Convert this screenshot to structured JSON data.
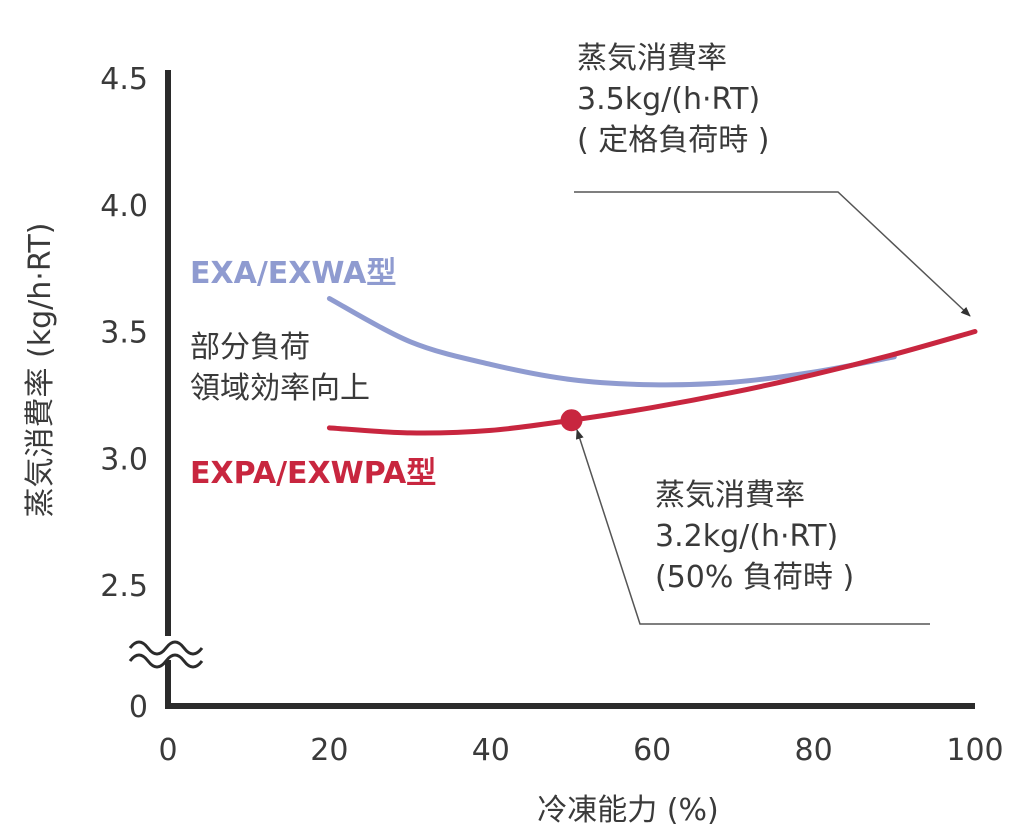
{
  "chart_data": {
    "type": "line",
    "xlabel": "冷凍能力 (%)",
    "ylabel": "蒸気消費率 (kg/h·RT)",
    "x_ticks": [
      "0",
      "20",
      "40",
      "60",
      "80",
      "100"
    ],
    "y_ticks": [
      "0",
      "2.5",
      "3.0",
      "3.5",
      "4.0",
      "4.5"
    ],
    "xlim": [
      0,
      100
    ],
    "ylim": [
      2.25,
      4.5
    ],
    "y_axis_break": true,
    "grid": false,
    "series": [
      {
        "name": "EXA/EXWA型",
        "color": "#8f9bd0",
        "x": [
          20,
          30,
          40,
          50,
          60,
          70,
          80,
          90
        ],
        "y": [
          3.63,
          3.46,
          3.37,
          3.31,
          3.29,
          3.3,
          3.34,
          3.4
        ]
      },
      {
        "name": "EXPA/EXWPA型",
        "color": "#c8263f",
        "x": [
          20,
          30,
          40,
          50,
          60,
          70,
          80,
          90,
          100
        ],
        "y": [
          3.12,
          3.1,
          3.11,
          3.15,
          3.2,
          3.26,
          3.33,
          3.41,
          3.5
        ]
      }
    ],
    "highlight_point": {
      "x": 50,
      "y": 3.15,
      "color": "#c8263f"
    },
    "annotations": [
      {
        "lines": [
          "蒸気消費率",
          "3.5kg/(h·RT)",
          "( 定格負荷時 )"
        ],
        "target": {
          "x": 100,
          "y": 3.5
        }
      },
      {
        "lines": [
          "蒸気消費率",
          "3.2kg/(h·RT)",
          "(50% 負荷時 )"
        ],
        "target": {
          "x": 50,
          "y": 3.15
        }
      },
      {
        "lines": [
          "部分負荷",
          "領域効率向上"
        ]
      }
    ]
  }
}
